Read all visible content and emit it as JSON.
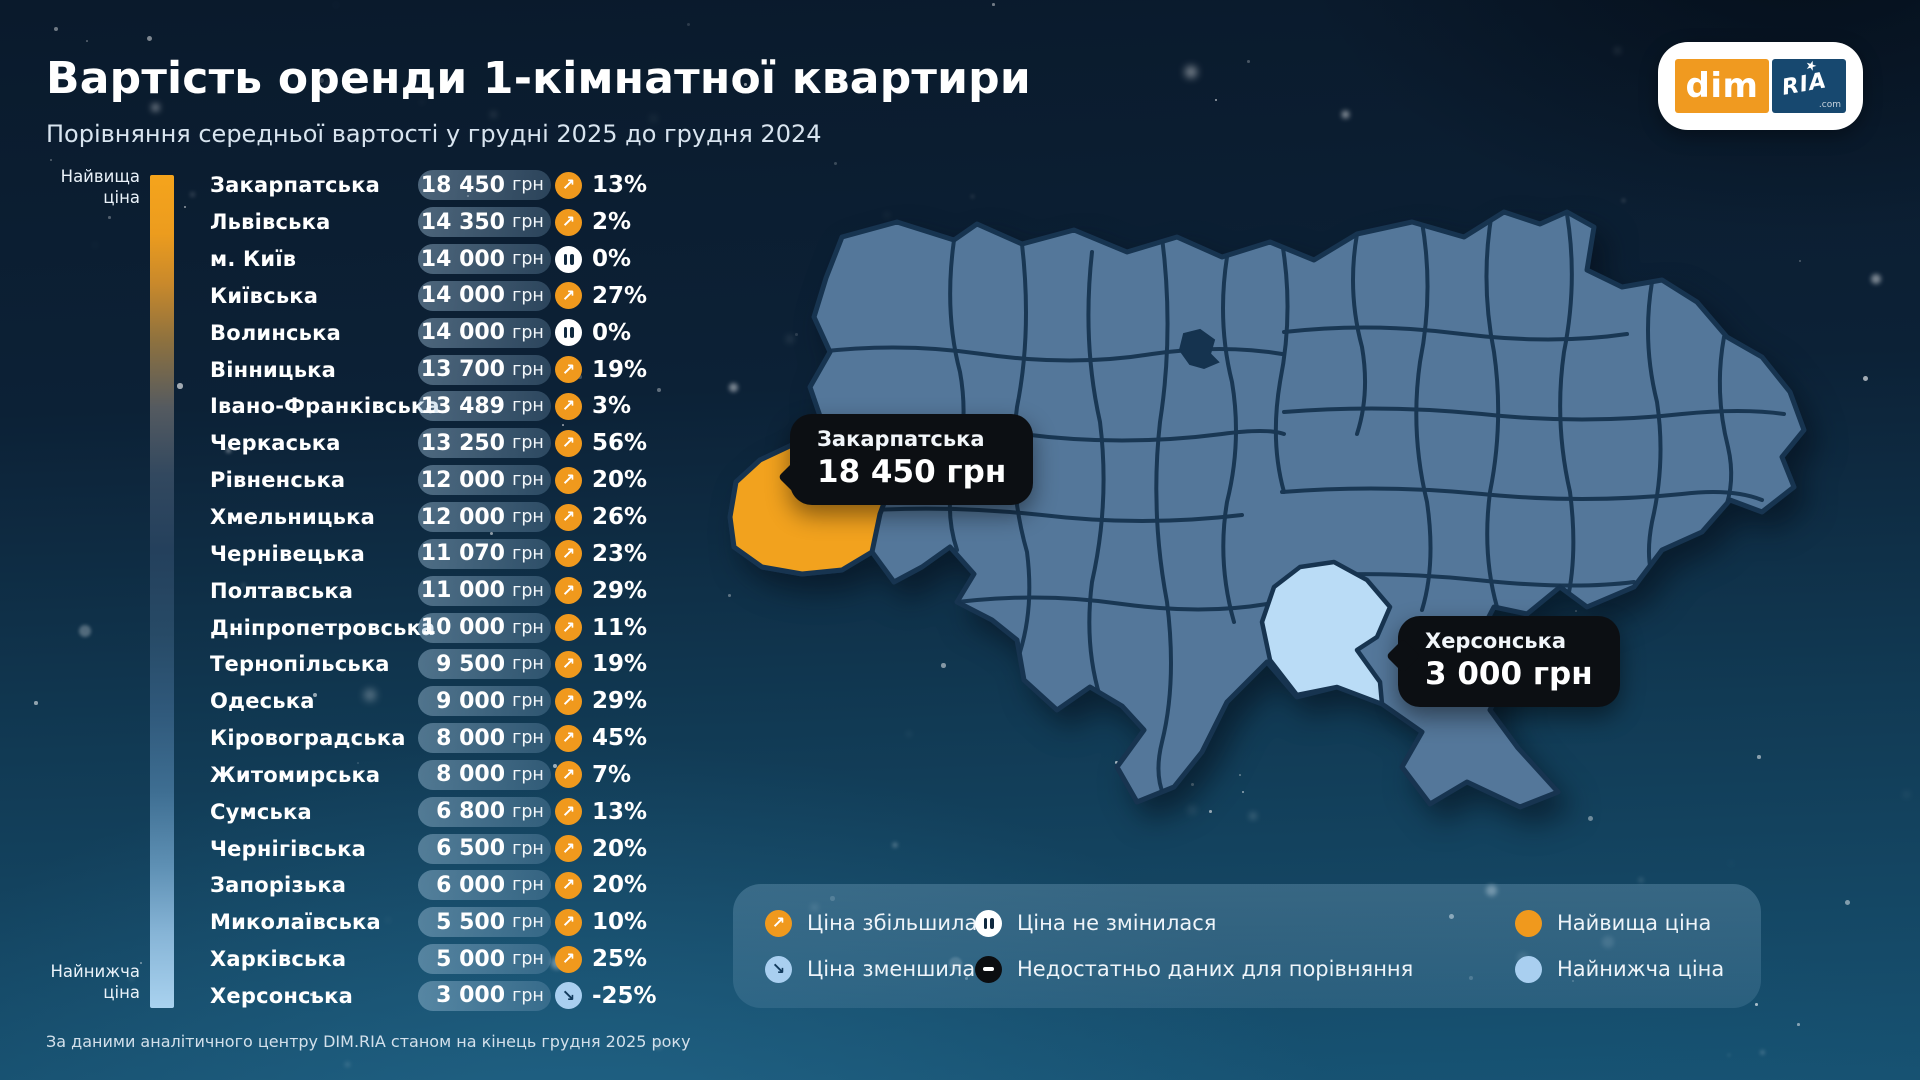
{
  "title": "Вартість оренди 1-кімнатної квартири",
  "subtitle": "Порівняння середньої вартості у грудні 2025 до грудня 2024",
  "scale": {
    "top_label": "Найвища ціна",
    "bottom_label": "Найнижча ціна"
  },
  "currency_label": "грн",
  "regions": [
    {
      "name": "Закарпатська",
      "price": "18 450",
      "change": "13%",
      "trend": "up"
    },
    {
      "name": "Львівська",
      "price": "14 350",
      "change": "2%",
      "trend": "up"
    },
    {
      "name": "м. Київ",
      "price": "14 000",
      "change": "0%",
      "trend": "pause"
    },
    {
      "name": "Київська",
      "price": "14 000",
      "change": "27%",
      "trend": "up"
    },
    {
      "name": "Волинська",
      "price": "14 000",
      "change": "0%",
      "trend": "pause"
    },
    {
      "name": "Вінницька",
      "price": "13 700",
      "change": "19%",
      "trend": "up"
    },
    {
      "name": "Івано-Франківська",
      "price": "13 489",
      "change": "3%",
      "trend": "up"
    },
    {
      "name": "Черкаська",
      "price": "13 250",
      "change": "56%",
      "trend": "up"
    },
    {
      "name": "Рівненська",
      "price": "12 000",
      "change": "20%",
      "trend": "up"
    },
    {
      "name": "Хмельницька",
      "price": "12 000",
      "change": "26%",
      "trend": "up"
    },
    {
      "name": "Чернівецька",
      "price": "11 070",
      "change": "23%",
      "trend": "up"
    },
    {
      "name": "Полтавська",
      "price": "11 000",
      "change": "29%",
      "trend": "up"
    },
    {
      "name": "Дніпропетровська",
      "price": "10 000",
      "change": "11%",
      "trend": "up"
    },
    {
      "name": "Тернопільська",
      "price": "9 500",
      "change": "19%",
      "trend": "up"
    },
    {
      "name": "Одеська",
      "price": "9 000",
      "change": "29%",
      "trend": "up"
    },
    {
      "name": "Кіровоградська",
      "price": "8 000",
      "change": "45%",
      "trend": "up"
    },
    {
      "name": "Житомирська",
      "price": "8 000",
      "change": "7%",
      "trend": "up"
    },
    {
      "name": "Сумська",
      "price": "6 800",
      "change": "13%",
      "trend": "up"
    },
    {
      "name": "Чернігівська",
      "price": "6 500",
      "change": "20%",
      "trend": "up"
    },
    {
      "name": "Запорізька",
      "price": "6 000",
      "change": "20%",
      "trend": "up"
    },
    {
      "name": "Миколаївська",
      "price": "5 500",
      "change": "10%",
      "trend": "up"
    },
    {
      "name": "Харківська",
      "price": "5 000",
      "change": "25%",
      "trend": "up"
    },
    {
      "name": "Херсонська",
      "price": "3 000",
      "change": "-25%",
      "trend": "down"
    }
  ],
  "map": {
    "callouts": [
      {
        "region": "Закарпатська",
        "price": "18 450 грн"
      },
      {
        "region": "Херсонська",
        "price": "3 000 грн"
      }
    ]
  },
  "legend": {
    "items": [
      {
        "icon": "up",
        "label": "Ціна збільшилася"
      },
      {
        "icon": "down",
        "label": "Ціна зменшилася"
      },
      {
        "icon": "pause",
        "label": "Ціна не змінилася"
      },
      {
        "icon": "minus",
        "label": "Недостатньо даних для порівняння"
      },
      {
        "icon": "dot-high",
        "label": "Найвища ціна"
      },
      {
        "icon": "dot-low",
        "label": "Найнижча ціна"
      }
    ]
  },
  "logo": {
    "dim": "dim",
    "ria": "RIA",
    "com": ".com"
  },
  "footer": "За даними аналітичного центру DIM.RIA станом на кінець грудня 2025 року",
  "colors": {
    "up_icon": "#F0991D",
    "down_icon": "#A9CFF0",
    "pause_icon": "#FFFFFF",
    "no_data_icon": "#0B0D10",
    "highest_region": "#F2A21E",
    "lowest_region": "#BADCF6",
    "map_region": "#54779A",
    "map_border": "#173450",
    "callout_bg": "#0C0F13",
    "background_top": "#0A1A2C",
    "background_bottom": "#175272"
  },
  "chart_data": {
    "type": "table",
    "title": "Вартість оренди 1-кімнатної квартири",
    "subtitle": "Порівняння середньої вартості у грудні 2025 до грудня 2024",
    "columns": [
      "region",
      "price_uah",
      "change_vs_dec_2024_pct",
      "trend"
    ],
    "rows": [
      [
        "Закарпатська",
        18450,
        13,
        "up"
      ],
      [
        "Львівська",
        14350,
        2,
        "up"
      ],
      [
        "м. Київ",
        14000,
        0,
        "unchanged"
      ],
      [
        "Київська",
        14000,
        27,
        "up"
      ],
      [
        "Волинська",
        14000,
        0,
        "unchanged"
      ],
      [
        "Вінницька",
        13700,
        19,
        "up"
      ],
      [
        "Івано-Франківська",
        13489,
        3,
        "up"
      ],
      [
        "Черкаська",
        13250,
        56,
        "up"
      ],
      [
        "Рівненська",
        12000,
        20,
        "up"
      ],
      [
        "Хмельницька",
        12000,
        26,
        "up"
      ],
      [
        "Чернівецька",
        11070,
        23,
        "up"
      ],
      [
        "Полтавська",
        11000,
        29,
        "up"
      ],
      [
        "Дніпропетровська",
        10000,
        11,
        "up"
      ],
      [
        "Тернопільська",
        9500,
        19,
        "up"
      ],
      [
        "Одеська",
        9000,
        29,
        "up"
      ],
      [
        "Кіровоградська",
        8000,
        45,
        "up"
      ],
      [
        "Житомирська",
        8000,
        7,
        "up"
      ],
      [
        "Сумська",
        6800,
        13,
        "up"
      ],
      [
        "Чернігівська",
        6500,
        20,
        "up"
      ],
      [
        "Запорізька",
        6000,
        20,
        "up"
      ],
      [
        "Миколаївська",
        5500,
        10,
        "up"
      ],
      [
        "Харківська",
        5000,
        25,
        "up"
      ],
      [
        "Херсонська",
        3000,
        -25,
        "down"
      ]
    ],
    "map_highlights": [
      {
        "region": "Закарпатська",
        "price_uah": 18450,
        "role": "highest"
      },
      {
        "region": "Херсонська",
        "price_uah": 3000,
        "role": "lowest"
      }
    ]
  }
}
